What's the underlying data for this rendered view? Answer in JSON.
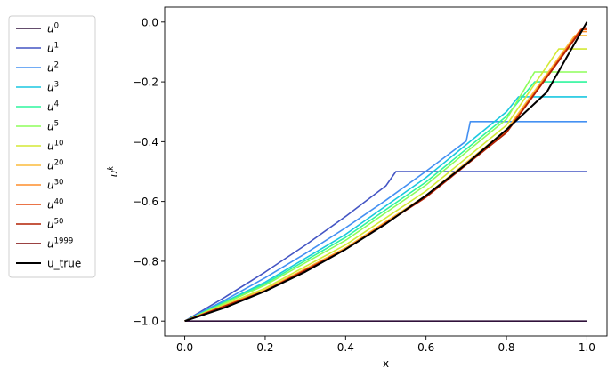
{
  "chart_data": {
    "type": "line",
    "xlabel": "x",
    "ylabel": "u",
    "ylabel_superscript": "k",
    "xlim": [
      -0.05,
      1.05
    ],
    "ylim": [
      -1.05,
      0.05
    ],
    "xticks": [
      0.0,
      0.2,
      0.4,
      0.6,
      0.8,
      1.0
    ],
    "xtick_labels": [
      "0.0",
      "0.2",
      "0.4",
      "0.6",
      "0.8",
      "1.0"
    ],
    "yticks": [
      -1.0,
      -0.8,
      -0.6,
      -0.4,
      -0.2,
      0.0
    ],
    "ytick_labels": [
      "−1.0",
      "−0.8",
      "−0.6",
      "−0.4",
      "−0.2",
      "0.0"
    ],
    "grid": false,
    "legend_position": "outside-left",
    "series": [
      {
        "name": "u",
        "sup": "0",
        "color": "#30123b",
        "x": [
          0.0,
          1.0
        ],
        "y": [
          -1.0,
          -1.0
        ]
      },
      {
        "name": "u",
        "sup": "1",
        "color": "#4455c4",
        "x": [
          0.0,
          0.1,
          0.2,
          0.3,
          0.4,
          0.5,
          0.525,
          1.0
        ],
        "y": [
          -1.0,
          -0.92,
          -0.836,
          -0.746,
          -0.65,
          -0.548,
          -0.5,
          -0.5
        ]
      },
      {
        "name": "u",
        "sup": "2",
        "color": "#4490f2",
        "x": [
          0.0,
          0.1,
          0.2,
          0.3,
          0.4,
          0.5,
          0.6,
          0.7,
          0.71,
          1.0
        ],
        "y": [
          -1.0,
          -0.93,
          -0.855,
          -0.774,
          -0.688,
          -0.596,
          -0.499,
          -0.398,
          -0.333,
          -0.333
        ]
      },
      {
        "name": "u",
        "sup": "3",
        "color": "#1ac7e0",
        "x": [
          0.0,
          0.2,
          0.4,
          0.6,
          0.8,
          0.83,
          1.0
        ],
        "y": [
          -1.0,
          -0.87,
          -0.71,
          -0.52,
          -0.3,
          -0.25,
          -0.25
        ]
      },
      {
        "name": "u",
        "sup": "4",
        "color": "#2ff59d",
        "x": [
          0.0,
          0.2,
          0.4,
          0.6,
          0.8,
          0.87,
          1.0
        ],
        "y": [
          -1.0,
          -0.875,
          -0.72,
          -0.535,
          -0.315,
          -0.2,
          -0.2
        ]
      },
      {
        "name": "u",
        "sup": "5",
        "color": "#8dfd5a",
        "x": [
          0.0,
          0.2,
          0.4,
          0.6,
          0.8,
          0.87,
          1.0
        ],
        "y": [
          -1.0,
          -0.88,
          -0.73,
          -0.545,
          -0.325,
          -0.167,
          -0.167
        ]
      },
      {
        "name": "u",
        "sup": "10",
        "color": "#d3e935",
        "x": [
          0.0,
          0.2,
          0.4,
          0.6,
          0.8,
          0.93,
          1.0
        ],
        "y": [
          -1.0,
          -0.89,
          -0.745,
          -0.565,
          -0.345,
          -0.09,
          -0.09
        ]
      },
      {
        "name": "u",
        "sup": "20",
        "color": "#fbbc3c",
        "x": [
          0.0,
          0.2,
          0.4,
          0.6,
          0.8,
          0.97,
          1.0
        ],
        "y": [
          -1.0,
          -0.895,
          -0.755,
          -0.58,
          -0.36,
          -0.045,
          -0.045
        ]
      },
      {
        "name": "u",
        "sup": "30",
        "color": "#fe8d2b",
        "x": [
          0.0,
          0.2,
          0.4,
          0.6,
          0.8,
          0.98,
          1.0
        ],
        "y": [
          -1.0,
          -0.898,
          -0.758,
          -0.584,
          -0.366,
          -0.032,
          -0.032
        ]
      },
      {
        "name": "u",
        "sup": "40",
        "color": "#e4460a",
        "x": [
          0.0,
          0.2,
          0.4,
          0.6,
          0.8,
          0.985,
          1.0
        ],
        "y": [
          -1.0,
          -0.899,
          -0.759,
          -0.585,
          -0.368,
          -0.025,
          -0.025
        ]
      },
      {
        "name": "u",
        "sup": "50",
        "color": "#b22003",
        "x": [
          0.0,
          0.2,
          0.4,
          0.6,
          0.8,
          0.99,
          1.0
        ],
        "y": [
          -1.0,
          -0.9,
          -0.76,
          -0.586,
          -0.37,
          -0.02,
          -0.02
        ]
      },
      {
        "name": "u",
        "sup": "1999",
        "color": "#7a0403",
        "x": [
          0.0,
          0.1,
          0.2,
          0.3,
          0.4,
          0.5,
          0.6,
          0.7,
          0.8,
          0.9,
          1.0
        ],
        "y": [
          -1.0,
          -0.955,
          -0.9,
          -0.835,
          -0.76,
          -0.675,
          -0.58,
          -0.475,
          -0.36,
          -0.235,
          0.0
        ]
      },
      {
        "name": "u_true",
        "sup": "",
        "color": "#000000",
        "x": [
          0.0,
          0.1,
          0.2,
          0.3,
          0.4,
          0.5,
          0.6,
          0.7,
          0.8,
          0.9,
          1.0
        ],
        "y": [
          -1.0,
          -0.955,
          -0.9,
          -0.835,
          -0.76,
          -0.675,
          -0.58,
          -0.475,
          -0.36,
          -0.235,
          0.0
        ]
      }
    ]
  }
}
